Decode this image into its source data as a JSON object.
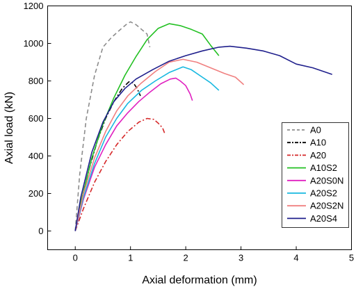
{
  "chart_data": {
    "type": "line",
    "xlabel": "Axial deformation (mm)",
    "ylabel": "Axial load (kN)",
    "xlim": [
      -0.5,
      5
    ],
    "ylim": [
      -100,
      1200
    ],
    "xticks": [
      "0",
      "1",
      "2",
      "3",
      "4",
      "5"
    ],
    "yticks": [
      "0",
      "200",
      "400",
      "600",
      "800",
      "1000",
      "1200"
    ],
    "grid": false,
    "legend_position": "lower-right",
    "series": [
      {
        "name": "A0",
        "color": "#8c8c8c",
        "dash": "dashed",
        "x": [
          0,
          0.08,
          0.2,
          0.35,
          0.5,
          0.65,
          0.8,
          0.92,
          1.0,
          1.1,
          1.2,
          1.3,
          1.35
        ],
        "y": [
          0,
          300,
          600,
          830,
          980,
          1030,
          1070,
          1100,
          1115,
          1100,
          1075,
          1050,
          980
        ]
      },
      {
        "name": "A10",
        "color": "#000000",
        "dash": "dashdot",
        "x": [
          0,
          0.1,
          0.25,
          0.4,
          0.55,
          0.7,
          0.85,
          0.97,
          1.05,
          1.12,
          1.18
        ],
        "y": [
          0,
          150,
          330,
          480,
          600,
          690,
          760,
          795,
          790,
          760,
          720
        ]
      },
      {
        "name": "A20",
        "color": "#d62728",
        "dash": "dashdot",
        "x": [
          0,
          0.15,
          0.35,
          0.55,
          0.75,
          0.95,
          1.15,
          1.3,
          1.42,
          1.5,
          1.58,
          1.62
        ],
        "y": [
          0,
          120,
          260,
          370,
          460,
          530,
          580,
          600,
          595,
          575,
          550,
          520
        ]
      },
      {
        "name": "A10S2",
        "color": "#22c022",
        "dash": "solid",
        "x": [
          0,
          0.1,
          0.3,
          0.5,
          0.7,
          0.9,
          1.1,
          1.3,
          1.5,
          1.7,
          1.9,
          2.1,
          2.3,
          2.45,
          2.6
        ],
        "y": [
          0,
          150,
          390,
          570,
          710,
          830,
          930,
          1020,
          1080,
          1105,
          1095,
          1075,
          1050,
          990,
          935
        ]
      },
      {
        "name": "A20S0N",
        "color": "#e020c0",
        "dash": "solid",
        "x": [
          0,
          0.15,
          0.35,
          0.55,
          0.75,
          0.95,
          1.15,
          1.35,
          1.55,
          1.72,
          1.82,
          1.9,
          2.0,
          2.08,
          2.12
        ],
        "y": [
          0,
          170,
          340,
          460,
          560,
          630,
          690,
          740,
          785,
          810,
          815,
          800,
          775,
          730,
          695
        ]
      },
      {
        "name": "A20S2",
        "color": "#17b8e0",
        "dash": "solid",
        "x": [
          0,
          0.15,
          0.35,
          0.55,
          0.75,
          0.95,
          1.2,
          1.45,
          1.7,
          1.95,
          2.1,
          2.3,
          2.45,
          2.6
        ],
        "y": [
          0,
          180,
          360,
          500,
          600,
          680,
          750,
          800,
          845,
          875,
          860,
          820,
          790,
          750
        ]
      },
      {
        "name": "A20S2N",
        "color": "#f08080",
        "dash": "solid",
        "x": [
          0,
          0.15,
          0.35,
          0.55,
          0.75,
          0.95,
          1.2,
          1.45,
          1.7,
          1.95,
          2.2,
          2.45,
          2.7,
          2.9,
          3.05
        ],
        "y": [
          0,
          200,
          390,
          530,
          640,
          720,
          790,
          850,
          900,
          915,
          900,
          870,
          840,
          820,
          780
        ]
      },
      {
        "name": "A20S4",
        "color": "#1f1f8c",
        "dash": "solid",
        "x": [
          0,
          0.1,
          0.3,
          0.5,
          0.7,
          0.9,
          1.1,
          1.4,
          1.7,
          2.0,
          2.3,
          2.6,
          2.8,
          3.1,
          3.4,
          3.7,
          4.0,
          4.3,
          4.65
        ],
        "y": [
          0,
          180,
          420,
          580,
          690,
          760,
          810,
          860,
          905,
          935,
          960,
          980,
          985,
          975,
          960,
          935,
          890,
          870,
          835
        ]
      }
    ]
  }
}
